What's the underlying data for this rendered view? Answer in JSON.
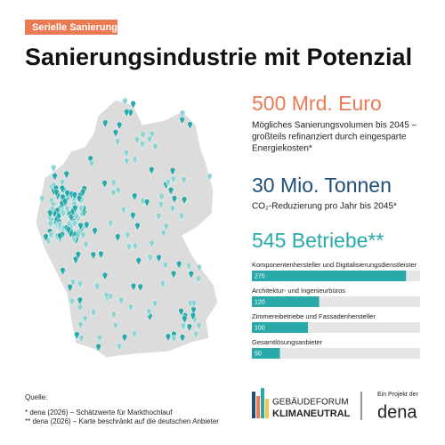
{
  "tag": "Serielle Sanierung",
  "title": "Sanierungsindustrie mit Potenzial",
  "stats": [
    {
      "headline": "500 Mrd. Euro",
      "lines": [
        "Mögliches Sanierungsvolumen bis 2045 –",
        "großteils refinanziert durch eingesparte",
        "Energiekosten*"
      ]
    },
    {
      "headline": "30 Mio. Tonnen",
      "lines": [
        "CO₂-Reduzierung pro Jahr bis 2045*"
      ]
    },
    {
      "headline": "545 Betriebe**",
      "lines": []
    }
  ],
  "bars": {
    "xlim": [
      0,
      300
    ],
    "items": [
      {
        "label": "Komponentenhersteller und Digitalisierungsdienstleister",
        "value": 275
      },
      {
        "label": "Architektur- und Ingenieurbüros",
        "value": 120
      },
      {
        "label": "Zimmereibetriebe und Fassadenhersteller",
        "value": 100
      },
      {
        "label": "Gesamtlösungsanbieter",
        "value": 50
      }
    ]
  },
  "sources": {
    "heading": "Quelle:",
    "lines": [
      "* dena (2026) – Schätzwerte für Markthochlauf",
      "** dena (2026) – Karte beschränkt auf die deutschen Anbieter"
    ]
  },
  "logo": {
    "line1": "GEBÄUDEFORUM",
    "line2": "KLIMANEUTRAL"
  },
  "partner": {
    "caption": "Ein Projekt der",
    "name": "dena"
  }
}
